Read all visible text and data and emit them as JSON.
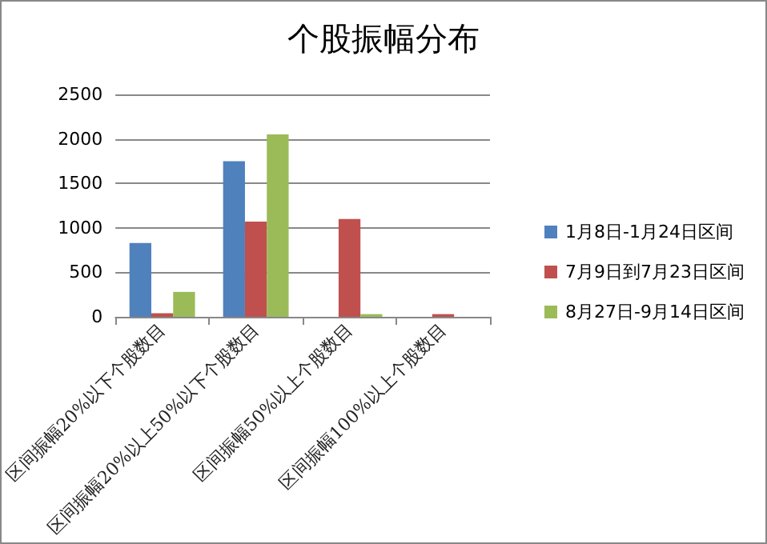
{
  "chart_data": {
    "type": "bar",
    "title": "个股振幅分布",
    "categories": [
      "区间振幅20%以下个股数目",
      "区间振幅20%以上50%以下个股数目",
      "区间振幅50%以上个股数目",
      "区间振幅100%以上个股数目"
    ],
    "series": [
      {
        "name": "1月8日-1月24日区间",
        "color": "#4f81bd",
        "values": [
          830,
          1750,
          0,
          0
        ]
      },
      {
        "name": "7月9日到7月23日区间",
        "color": "#c0504d",
        "values": [
          40,
          1070,
          1100,
          30
        ]
      },
      {
        "name": "8月27日-9月14日区间",
        "color": "#9bbb59",
        "values": [
          280,
          2050,
          30,
          0
        ]
      }
    ],
    "ylim": [
      0,
      2500
    ],
    "yticks": [
      0,
      500,
      1000,
      1500,
      2000,
      2500
    ],
    "grid": "y",
    "legend": "right"
  }
}
